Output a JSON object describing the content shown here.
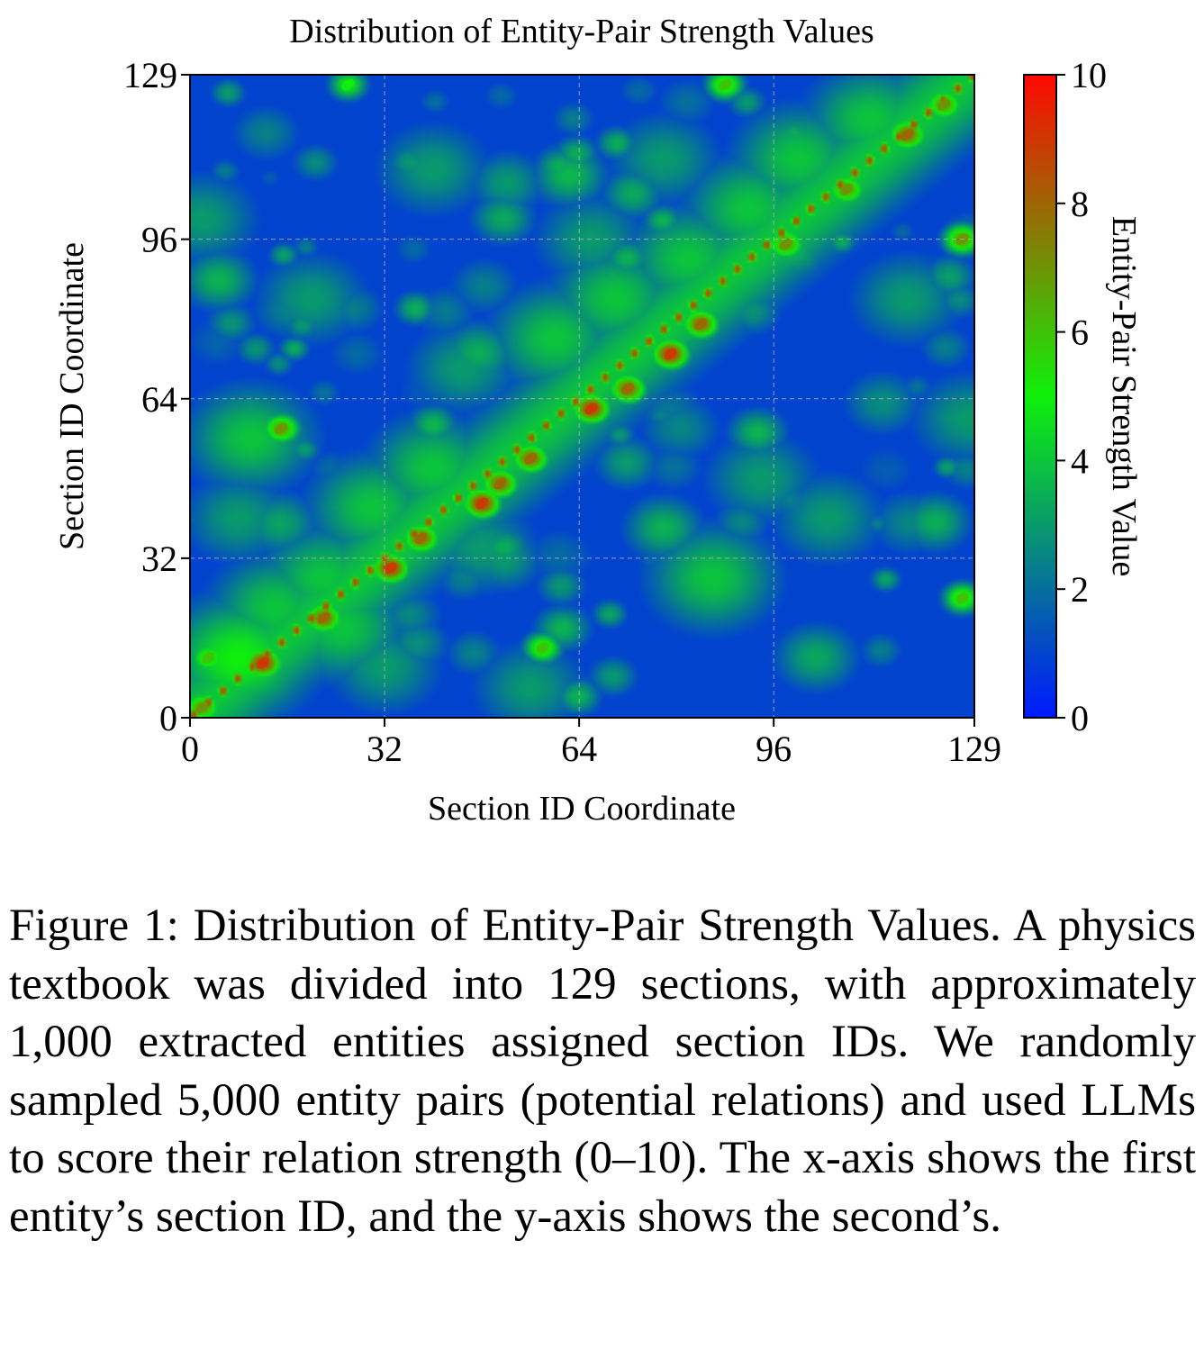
{
  "chart_data": {
    "type": "heatmap",
    "title": "Distribution of Entity-Pair Strength Values",
    "xlabel": "Section ID Coordinate",
    "ylabel": "Section ID Coordinate",
    "xlim": [
      0,
      129
    ],
    "ylim": [
      0,
      129
    ],
    "xticks": [
      0,
      32,
      64,
      96,
      129
    ],
    "yticks": [
      0,
      32,
      64,
      96,
      129
    ],
    "grid": true,
    "grid_style": "dashed",
    "colorbar": {
      "label": "Entity-Pair Strength Value",
      "range": [
        0,
        10
      ],
      "ticks": [
        0,
        2,
        4,
        6,
        8,
        10
      ],
      "colormap": [
        "#0019ff",
        "#0ff00a",
        "#ff0800"
      ],
      "placement": "right"
    },
    "description_of_pattern": {
      "background_level": 1,
      "diagonal_line": "y = x",
      "diagonal_peak_level": 9,
      "diagonal_band_level": 4
    },
    "hotspots": [
      {
        "x": 2,
        "y": 2,
        "value": 7
      },
      {
        "x": 12,
        "y": 11,
        "value": 9
      },
      {
        "x": 22,
        "y": 20,
        "value": 8
      },
      {
        "x": 33,
        "y": 30,
        "value": 9
      },
      {
        "x": 38,
        "y": 36,
        "value": 8
      },
      {
        "x": 48,
        "y": 43,
        "value": 9
      },
      {
        "x": 51,
        "y": 47,
        "value": 8
      },
      {
        "x": 56,
        "y": 52,
        "value": 8
      },
      {
        "x": 66,
        "y": 62,
        "value": 9
      },
      {
        "x": 72,
        "y": 66,
        "value": 8
      },
      {
        "x": 79,
        "y": 73,
        "value": 9
      },
      {
        "x": 84,
        "y": 79,
        "value": 8
      },
      {
        "x": 98,
        "y": 95,
        "value": 7
      },
      {
        "x": 108,
        "y": 106,
        "value": 7
      },
      {
        "x": 118,
        "y": 117,
        "value": 8
      },
      {
        "x": 124,
        "y": 123,
        "value": 7
      },
      {
        "x": 15,
        "y": 58,
        "value": 7
      },
      {
        "x": 88,
        "y": 127,
        "value": 6
      },
      {
        "x": 26,
        "y": 127,
        "value": 5
      },
      {
        "x": 58,
        "y": 14,
        "value": 6
      },
      {
        "x": 127,
        "y": 96,
        "value": 7
      },
      {
        "x": 127,
        "y": 24,
        "value": 6
      },
      {
        "x": 3,
        "y": 12,
        "value": 6
      }
    ],
    "green_regions": [
      {
        "x": 8,
        "y": 12,
        "value": 5
      },
      {
        "x": 14,
        "y": 22,
        "value": 4
      },
      {
        "x": 22,
        "y": 28,
        "value": 4
      },
      {
        "x": 30,
        "y": 42,
        "value": 4
      },
      {
        "x": 40,
        "y": 50,
        "value": 4
      },
      {
        "x": 10,
        "y": 56,
        "value": 4
      },
      {
        "x": 60,
        "y": 76,
        "value": 4
      },
      {
        "x": 70,
        "y": 84,
        "value": 4
      },
      {
        "x": 82,
        "y": 92,
        "value": 4
      },
      {
        "x": 92,
        "y": 102,
        "value": 4
      },
      {
        "x": 100,
        "y": 112,
        "value": 4
      },
      {
        "x": 112,
        "y": 120,
        "value": 4
      },
      {
        "x": 8,
        "y": 40,
        "value": 3
      },
      {
        "x": 25,
        "y": 18,
        "value": 4
      },
      {
        "x": 32,
        "y": 10,
        "value": 3
      },
      {
        "x": 56,
        "y": 6,
        "value": 3
      },
      {
        "x": 48,
        "y": 34,
        "value": 3
      },
      {
        "x": 128,
        "y": 60,
        "value": 3
      },
      {
        "x": 66,
        "y": 96,
        "value": 3
      },
      {
        "x": 40,
        "y": 110,
        "value": 3
      },
      {
        "x": 78,
        "y": 112,
        "value": 3
      },
      {
        "x": 20,
        "y": 84,
        "value": 3
      },
      {
        "x": 105,
        "y": 40,
        "value": 3
      },
      {
        "x": 86,
        "y": 28,
        "value": 4
      },
      {
        "x": 94,
        "y": 48,
        "value": 3
      },
      {
        "x": 118,
        "y": 84,
        "value": 3
      },
      {
        "x": 2,
        "y": 100,
        "value": 3
      },
      {
        "x": 45,
        "y": 70,
        "value": 3
      }
    ]
  },
  "caption": {
    "label": "Figure 1:",
    "text": "Distribution of Entity-Pair Strength Values. A physics textbook was divided into 129 sections, with approximately 1,000 extracted entities assigned section IDs. We randomly sampled 5,000 entity pairs (potential relations) and used LLMs to score their relation strength (0–10). The x-axis shows the first entity’s section ID, and the y-axis shows the second’s."
  }
}
